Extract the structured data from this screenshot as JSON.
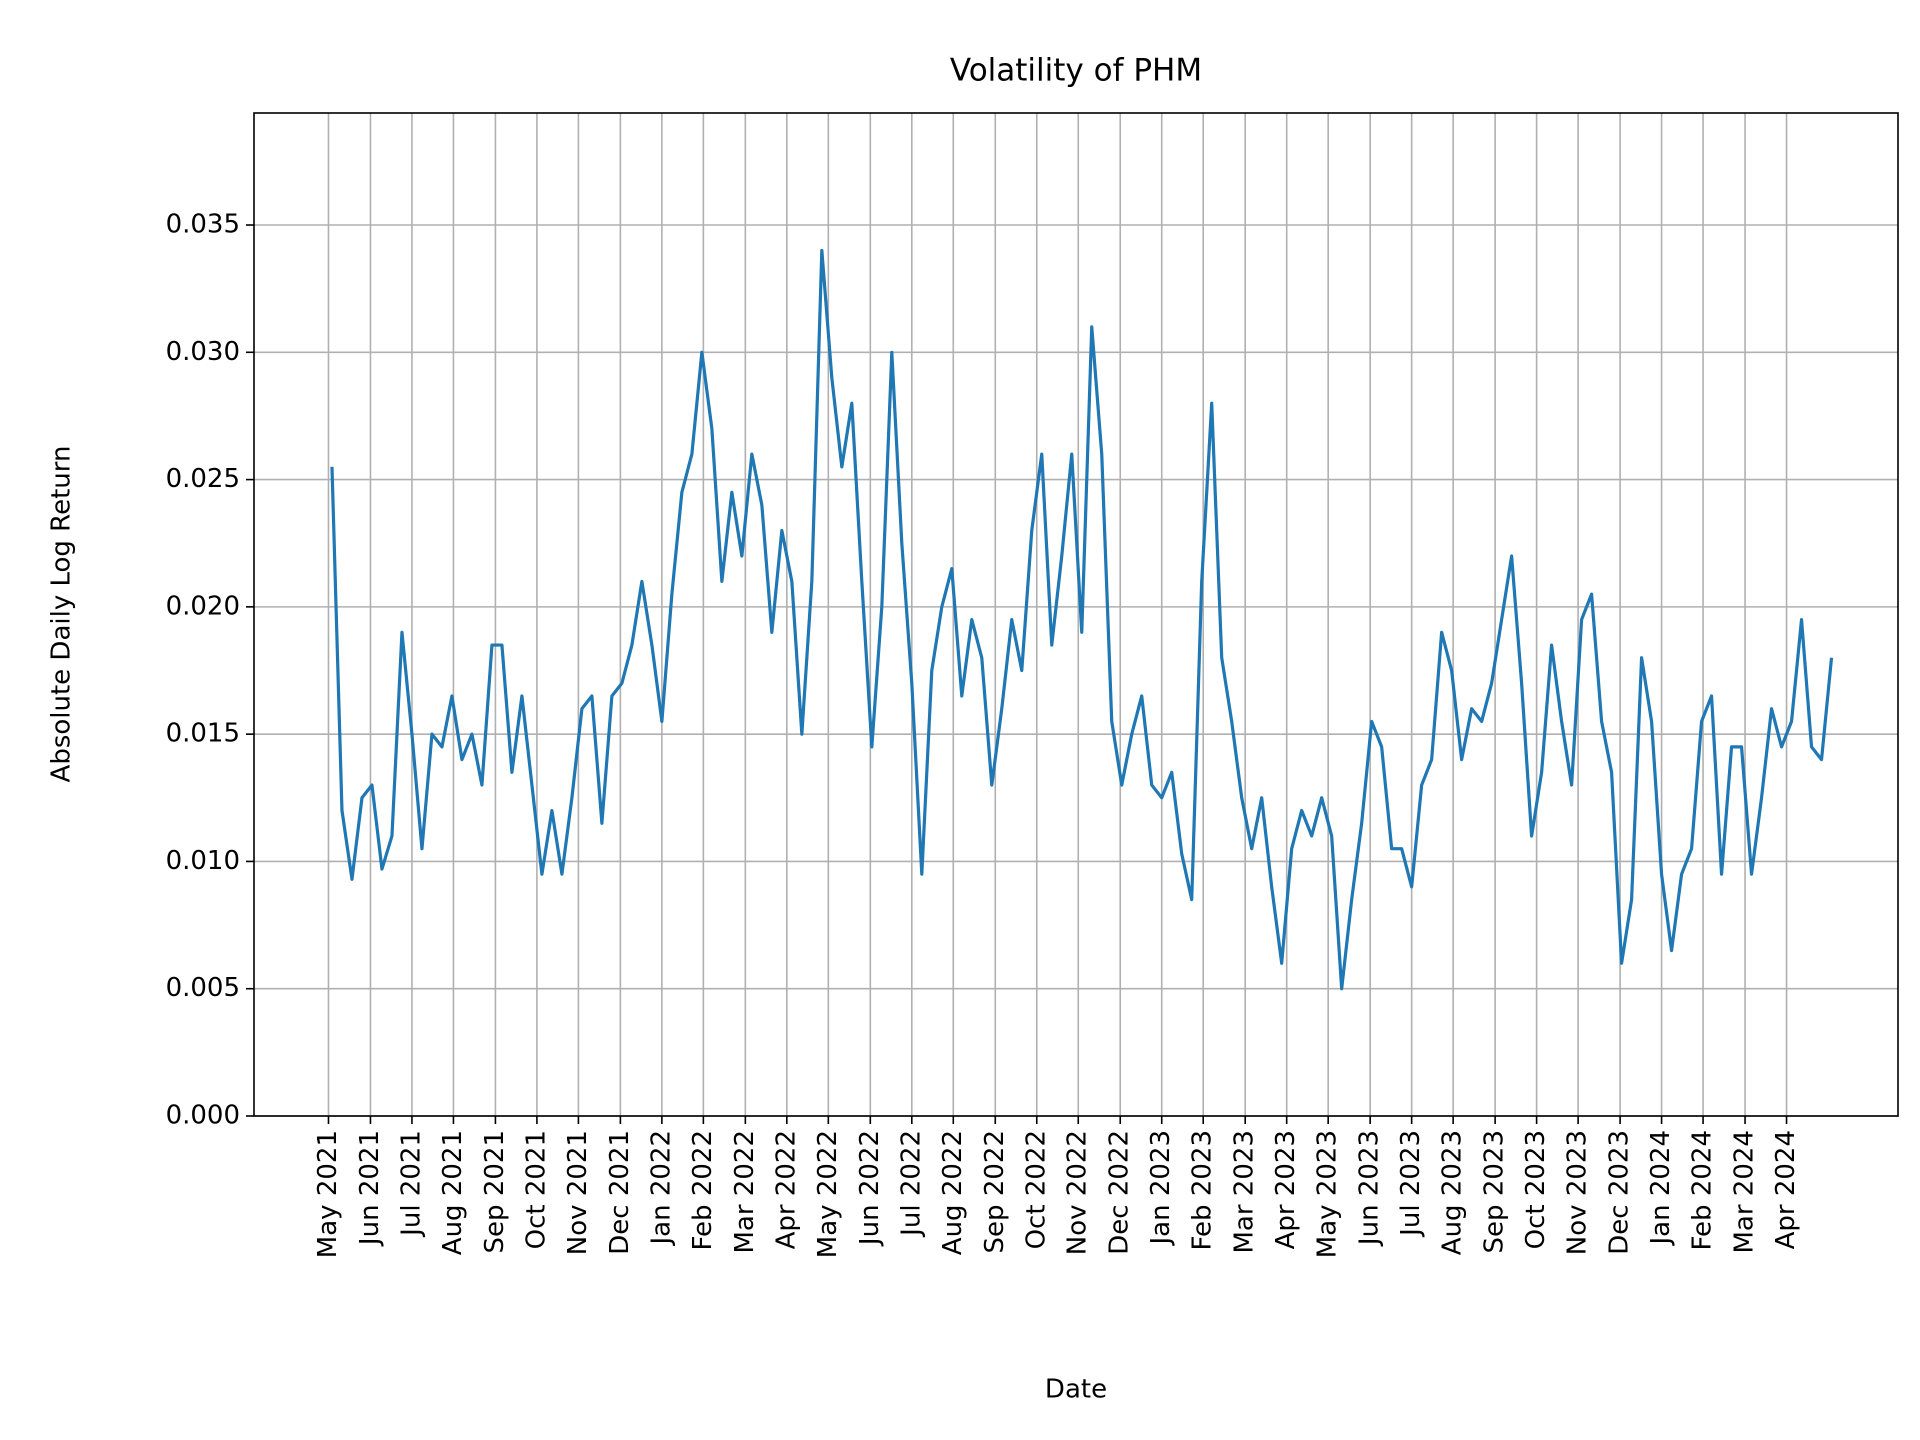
{
  "chart_data": {
    "type": "line",
    "title": "Volatility of PHM",
    "x_label": "Date",
    "y_label": "Absolute Daily Log Return",
    "x": [
      2021.34,
      2021.36,
      2021.38,
      2021.4,
      2021.42,
      2021.44,
      2021.46,
      2021.48,
      2021.5,
      2021.52,
      2021.54,
      2021.56,
      2021.58,
      2021.6,
      2021.62,
      2021.64,
      2021.66,
      2021.68,
      2021.7,
      2021.72,
      2021.74,
      2021.76,
      2021.78,
      2021.8,
      2021.82,
      2021.84,
      2021.86,
      2021.88,
      2021.9,
      2021.92,
      2021.94,
      2021.96,
      2021.98,
      2022.0,
      2022.02,
      2022.04,
      2022.06,
      2022.08,
      2022.1,
      2022.12,
      2022.14,
      2022.16,
      2022.18,
      2022.2,
      2022.22,
      2022.24,
      2022.26,
      2022.28,
      2022.3,
      2022.32,
      2022.34,
      2022.36,
      2022.38,
      2022.4,
      2022.42,
      2022.44,
      2022.46,
      2022.48,
      2022.5,
      2022.52,
      2022.54,
      2022.56,
      2022.58,
      2022.6,
      2022.62,
      2022.64,
      2022.66,
      2022.68,
      2022.7,
      2022.72,
      2022.74,
      2022.76,
      2022.78,
      2022.8,
      2022.82,
      2022.84,
      2022.86,
      2022.88,
      2022.9,
      2022.92,
      2022.94,
      2022.96,
      2022.98,
      2023.0,
      2023.02,
      2023.04,
      2023.06,
      2023.08,
      2023.1,
      2023.12,
      2023.14,
      2023.16,
      2023.18,
      2023.2,
      2023.22,
      2023.24,
      2023.26,
      2023.28,
      2023.3,
      2023.32,
      2023.34,
      2023.36,
      2023.38,
      2023.4,
      2023.42,
      2023.44,
      2023.46,
      2023.48,
      2023.5,
      2023.52,
      2023.54,
      2023.56,
      2023.58,
      2023.6,
      2023.62,
      2023.64,
      2023.66,
      2023.68,
      2023.7,
      2023.72,
      2023.74,
      2023.76,
      2023.78,
      2023.8,
      2023.82,
      2023.84,
      2023.86,
      2023.88,
      2023.9,
      2023.92,
      2023.94,
      2023.96,
      2023.98,
      2024.0,
      2024.02,
      2024.04,
      2024.06,
      2024.08,
      2024.1,
      2024.12,
      2024.14,
      2024.16,
      2024.18,
      2024.2,
      2024.22,
      2024.24,
      2024.26,
      2024.28,
      2024.3,
      2024.32,
      2024.34
    ],
    "series": [
      {
        "name": "Volatility",
        "color": "#1f77b4",
        "values": [
          0.0255,
          0.012,
          0.0093,
          0.0125,
          0.013,
          0.0097,
          0.011,
          0.019,
          0.015,
          0.0105,
          0.015,
          0.0145,
          0.0165,
          0.014,
          0.015,
          0.013,
          0.0185,
          0.0185,
          0.0135,
          0.0165,
          0.013,
          0.0095,
          0.012,
          0.0095,
          0.0125,
          0.016,
          0.0165,
          0.0115,
          0.0165,
          0.017,
          0.0185,
          0.021,
          0.0185,
          0.0155,
          0.0205,
          0.0245,
          0.026,
          0.03,
          0.027,
          0.021,
          0.0245,
          0.022,
          0.026,
          0.024,
          0.019,
          0.023,
          0.021,
          0.015,
          0.021,
          0.034,
          0.029,
          0.0255,
          0.028,
          0.021,
          0.0145,
          0.02,
          0.03,
          0.0225,
          0.017,
          0.0095,
          0.0175,
          0.02,
          0.0215,
          0.0165,
          0.0195,
          0.018,
          0.013,
          0.016,
          0.0195,
          0.0175,
          0.023,
          0.026,
          0.0185,
          0.022,
          0.026,
          0.019,
          0.031,
          0.026,
          0.0155,
          0.013,
          0.015,
          0.0165,
          0.013,
          0.0125,
          0.0135,
          0.0103,
          0.0085,
          0.021,
          0.028,
          0.018,
          0.0155,
          0.0125,
          0.0105,
          0.0125,
          0.009,
          0.006,
          0.0105,
          0.012,
          0.011,
          0.0125,
          0.011,
          0.005,
          0.0085,
          0.0115,
          0.0155,
          0.0145,
          0.0105,
          0.0105,
          0.009,
          0.013,
          0.014,
          0.019,
          0.0175,
          0.014,
          0.016,
          0.0155,
          0.017,
          0.0195,
          0.022,
          0.017,
          0.011,
          0.0135,
          0.0185,
          0.0155,
          0.013,
          0.0195,
          0.0205,
          0.0155,
          0.0135,
          0.006,
          0.0085,
          0.018,
          0.0155,
          0.0095,
          0.0065,
          0.0095,
          0.0105,
          0.0155,
          0.0165,
          0.0095,
          0.0145,
          0.0145,
          0.0095,
          0.0125,
          0.016,
          0.0145,
          0.0155,
          0.0195,
          0.0145,
          0.014,
          0.018
        ]
      }
    ],
    "xlim": [
      2021.184,
      2024.473
    ],
    "xticks": [
      {
        "value": 2021.333,
        "label": "May 2021"
      },
      {
        "value": 2021.417,
        "label": "Jun 2021"
      },
      {
        "value": 2021.5,
        "label": "Jul 2021"
      },
      {
        "value": 2021.583,
        "label": "Aug 2021"
      },
      {
        "value": 2021.667,
        "label": "Sep 2021"
      },
      {
        "value": 2021.75,
        "label": "Oct 2021"
      },
      {
        "value": 2021.833,
        "label": "Nov 2021"
      },
      {
        "value": 2021.917,
        "label": "Dec 2021"
      },
      {
        "value": 2022.0,
        "label": "Jan 2022"
      },
      {
        "value": 2022.083,
        "label": "Feb 2022"
      },
      {
        "value": 2022.167,
        "label": "Mar 2022"
      },
      {
        "value": 2022.25,
        "label": "Apr 2022"
      },
      {
        "value": 2022.333,
        "label": "May 2022"
      },
      {
        "value": 2022.417,
        "label": "Jun 2022"
      },
      {
        "value": 2022.5,
        "label": "Jul 2022"
      },
      {
        "value": 2022.583,
        "label": "Aug 2022"
      },
      {
        "value": 2022.667,
        "label": "Sep 2022"
      },
      {
        "value": 2022.75,
        "label": "Oct 2022"
      },
      {
        "value": 2022.833,
        "label": "Nov 2022"
      },
      {
        "value": 2022.917,
        "label": "Dec 2022"
      },
      {
        "value": 2023.0,
        "label": "Jan 2023"
      },
      {
        "value": 2023.083,
        "label": "Feb 2023"
      },
      {
        "value": 2023.167,
        "label": "Mar 2023"
      },
      {
        "value": 2023.25,
        "label": "Apr 2023"
      },
      {
        "value": 2023.333,
        "label": "May 2023"
      },
      {
        "value": 2023.417,
        "label": "Jun 2023"
      },
      {
        "value": 2023.5,
        "label": "Jul 2023"
      },
      {
        "value": 2023.583,
        "label": "Aug 2023"
      },
      {
        "value": 2023.667,
        "label": "Sep 2023"
      },
      {
        "value": 2023.75,
        "label": "Oct 2023"
      },
      {
        "value": 2023.833,
        "label": "Nov 2023"
      },
      {
        "value": 2023.917,
        "label": "Dec 2023"
      },
      {
        "value": 2024.0,
        "label": "Jan 2024"
      },
      {
        "value": 2024.083,
        "label": "Feb 2024"
      },
      {
        "value": 2024.167,
        "label": "Mar 2024"
      },
      {
        "value": 2024.25,
        "label": "Apr 2024"
      }
    ],
    "ylim": [
      0,
      0.0394
    ],
    "yticks": [
      {
        "value": 0,
        "label": "0.000"
      },
      {
        "value": 0.005,
        "label": "0.005"
      },
      {
        "value": 0.01,
        "label": "0.010"
      },
      {
        "value": 0.015,
        "label": "0.015"
      },
      {
        "value": 0.02,
        "label": "0.020"
      },
      {
        "value": 0.025,
        "label": "0.025"
      },
      {
        "value": 0.03,
        "label": "0.030"
      },
      {
        "value": 0.035,
        "label": "0.035"
      }
    ],
    "grid": true
  }
}
